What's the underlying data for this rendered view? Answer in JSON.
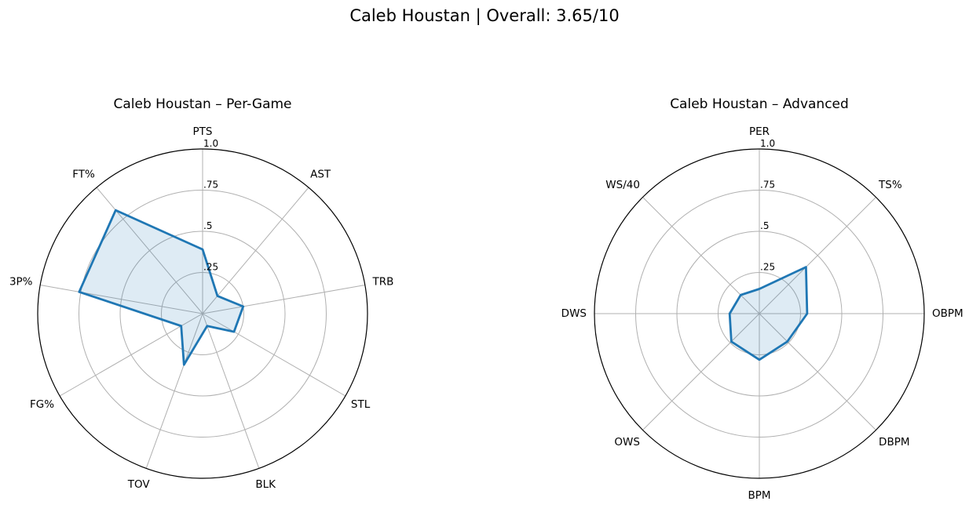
{
  "suptitle": "Caleb Houstan | Overall: 3.65/10",
  "colors": {
    "line": "#1f77b4",
    "fill": "#1f77b4",
    "grid": "#b0b0b0",
    "frame": "#000000"
  },
  "chart_data": [
    {
      "type": "radar",
      "title": "Caleb Houstan – Per-Game",
      "axes": [
        "PTS",
        "AST",
        "TRB",
        "STL",
        "BLK",
        "TOV",
        "FG%",
        "3P%",
        "FT%"
      ],
      "values": [
        0.39,
        0.14,
        0.25,
        0.22,
        0.08,
        0.33,
        0.15,
        0.76,
        0.82
      ],
      "rlim": [
        0,
        1
      ],
      "rticks": [
        0.25,
        0.5,
        0.75,
        1.0
      ],
      "rtick_labels": [
        ".25",
        ".5",
        ".75",
        "1.0"
      ],
      "grid": true
    },
    {
      "type": "radar",
      "title": "Caleb Houstan – Advanced",
      "axes": [
        "PER",
        "TS%",
        "OBPM",
        "DBPM",
        "BPM",
        "OWS",
        "DWS",
        "WS/40"
      ],
      "values": [
        0.15,
        0.4,
        0.29,
        0.24,
        0.28,
        0.24,
        0.18,
        0.16
      ],
      "rlim": [
        0,
        1
      ],
      "rticks": [
        0.25,
        0.5,
        0.75,
        1.0
      ],
      "rtick_labels": [
        ".25",
        ".5",
        ".75",
        "1.0"
      ],
      "grid": true
    }
  ]
}
